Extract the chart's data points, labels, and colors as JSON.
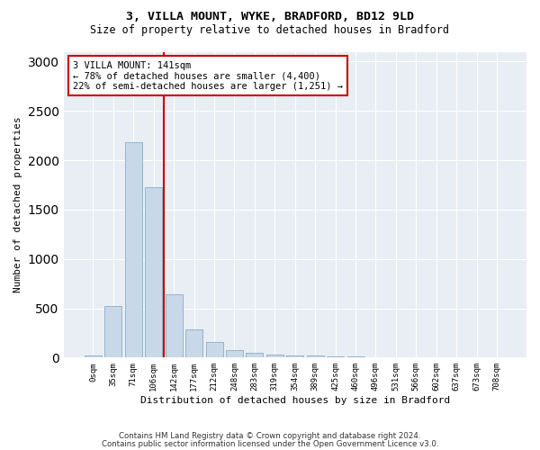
{
  "title1": "3, VILLA MOUNT, WYKE, BRADFORD, BD12 9LD",
  "title2": "Size of property relative to detached houses in Bradford",
  "xlabel": "Distribution of detached houses by size in Bradford",
  "ylabel": "Number of detached properties",
  "bar_values": [
    20,
    520,
    2180,
    1730,
    640,
    290,
    155,
    80,
    45,
    30,
    25,
    20,
    15,
    10,
    5,
    5,
    5,
    5,
    5,
    5,
    5
  ],
  "bar_labels": [
    "0sqm",
    "35sqm",
    "71sqm",
    "106sqm",
    "142sqm",
    "177sqm",
    "212sqm",
    "248sqm",
    "283sqm",
    "319sqm",
    "354sqm",
    "389sqm",
    "425sqm",
    "460sqm",
    "496sqm",
    "531sqm",
    "566sqm",
    "602sqm",
    "637sqm",
    "673sqm",
    "708sqm"
  ],
  "annotation_text": "3 VILLA MOUNT: 141sqm\n← 78% of detached houses are smaller (4,400)\n22% of semi-detached houses are larger (1,251) →",
  "bar_color": "#c8d8e8",
  "bar_edge_color": "#7aa0c0",
  "line_color": "#cc0000",
  "annotation_box_color": "#ffffff",
  "annotation_box_edge": "#cc0000",
  "ylim": [
    0,
    3100
  ],
  "property_line_x": 3.5,
  "footer1": "Contains HM Land Registry data © Crown copyright and database right 2024.",
  "footer2": "Contains public sector information licensed under the Open Government Licence v3.0.",
  "background_color": "#e8eef4"
}
